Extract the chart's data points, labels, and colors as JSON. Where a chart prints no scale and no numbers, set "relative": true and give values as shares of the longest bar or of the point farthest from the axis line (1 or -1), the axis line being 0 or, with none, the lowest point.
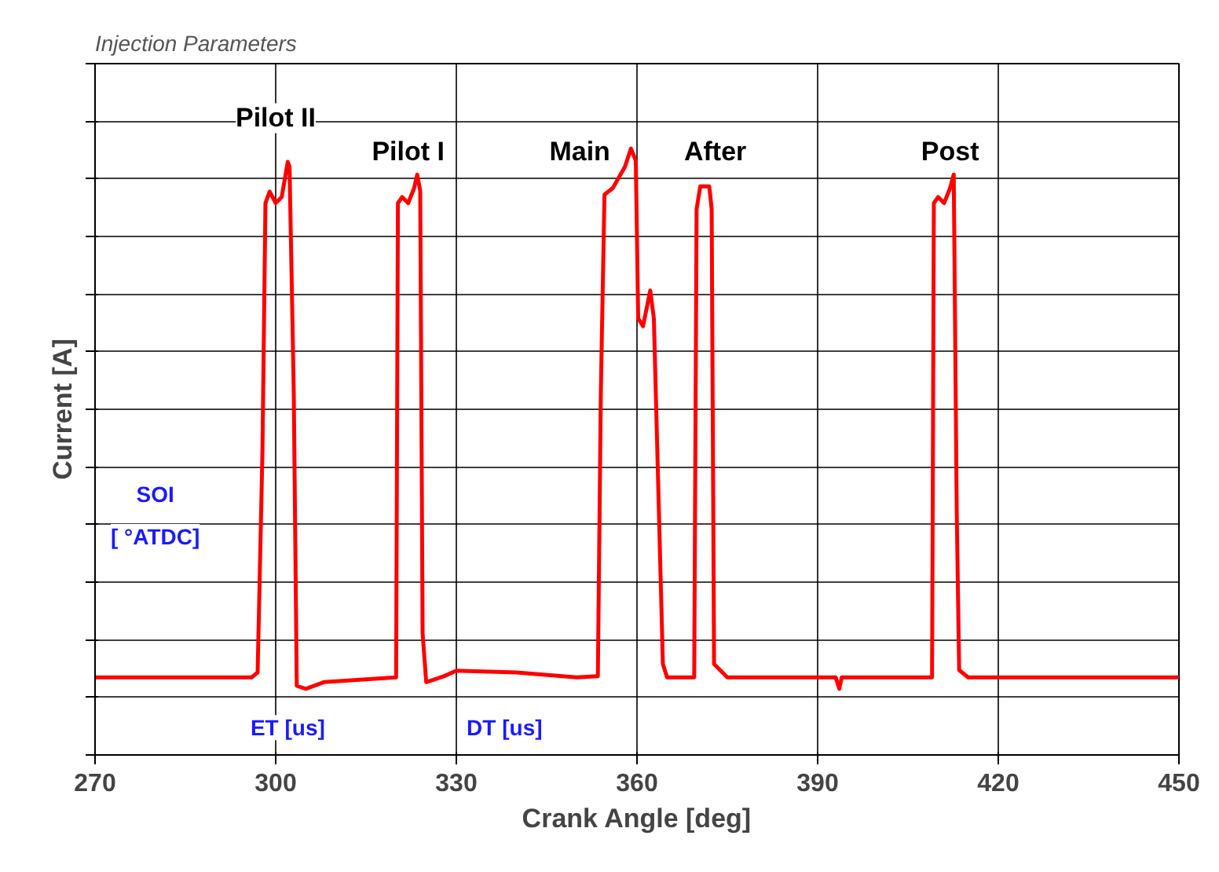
{
  "chart_data": {
    "type": "line",
    "title": "Injection Parameters",
    "xlabel": "Crank Angle [deg]",
    "ylabel": "Current [A]",
    "relative": true,
    "xlim": [
      270,
      450
    ],
    "xticks": [
      270,
      300,
      330,
      360,
      390,
      420,
      450
    ],
    "grid": true,
    "marker": "none",
    "line_style": "solid",
    "series": [
      {
        "color": "#ff0000",
        "x": [
          270,
          296,
          297,
          297.8,
          298.3,
          299,
          300,
          301,
          302,
          302.3,
          303,
          303.5,
          305,
          308,
          320,
          320.3,
          321,
          322,
          323,
          323.5,
          324,
          324.4,
          325,
          328,
          330,
          340,
          350,
          353.5,
          354,
          354.6,
          356,
          358,
          359,
          359.8,
          360.2,
          361,
          362.2,
          362.8,
          364.3,
          365,
          369.5,
          369.9,
          370.5,
          372,
          372.4,
          372.8,
          375,
          393,
          393.6,
          394,
          409,
          409.3,
          410,
          411,
          412,
          412.6,
          413.1,
          413.5,
          415,
          450
        ],
        "values": [
          0.128,
          0.128,
          0.136,
          0.5,
          0.91,
          0.929,
          0.91,
          0.92,
          0.978,
          0.97,
          0.6,
          0.114,
          0.109,
          0.12,
          0.128,
          0.91,
          0.92,
          0.91,
          0.935,
          0.957,
          0.93,
          0.2,
          0.12,
          0.13,
          0.139,
          0.136,
          0.128,
          0.13,
          0.6,
          0.924,
          0.935,
          0.97,
          1.0,
          0.98,
          0.72,
          0.707,
          0.766,
          0.72,
          0.15,
          0.128,
          0.128,
          0.9,
          0.9375,
          0.9375,
          0.9,
          0.15,
          0.128,
          0.128,
          0.109,
          0.128,
          0.128,
          0.91,
          0.92,
          0.91,
          0.935,
          0.957,
          0.4,
          0.14,
          0.128,
          0.128
        ]
      }
    ],
    "annotations": [
      "Pilot II",
      "Pilot I",
      "Main",
      "After",
      "Post",
      "SOI",
      "[ °ATDC]",
      "ET [us]",
      "DT [us]"
    ]
  }
}
